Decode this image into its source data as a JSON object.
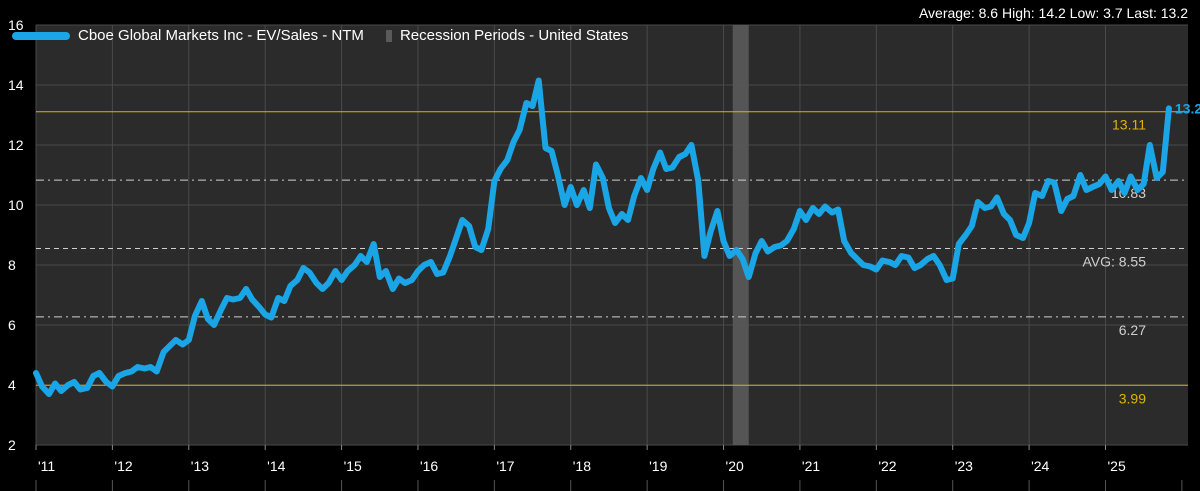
{
  "stats_text": "Average: 8.6 High: 14.2 Low: 3.7 Last: 13.2",
  "legend": {
    "series_label": "Cboe Global Markets Inc - EV/Sales - NTM",
    "recession_label": "Recession Periods - United States"
  },
  "colors": {
    "background": "#000000",
    "plot_background": "#2b2b2b",
    "series": "#1aa6e6",
    "recession": "#5a5a5a",
    "band": "#e0b400",
    "ref_line": "#cfcfcf",
    "grid": "#4a4a4a"
  },
  "chart_data": {
    "type": "line",
    "ylim": [
      2,
      16
    ],
    "yticks": [
      "2",
      "4",
      "6",
      "8",
      "10",
      "12",
      "14",
      "16"
    ],
    "xlim": [
      2011.0,
      2026.08
    ],
    "xtick_labels": [
      "'11",
      "'12",
      "'13",
      "'14",
      "'15",
      "'16",
      "'17",
      "'18",
      "'19",
      "'20",
      "'21",
      "'22",
      "'23",
      "'24",
      "'25"
    ],
    "grid": true,
    "legend_position": "top-left",
    "reference_lines": [
      {
        "value": 13.11,
        "label": "13.11",
        "style": "solid",
        "color": "#e0b400"
      },
      {
        "value": 10.83,
        "label": "10.83",
        "style": "dashdot",
        "color": "#cfcfcf"
      },
      {
        "value": 8.55,
        "label": "AVG:  8.55",
        "style": "dashed",
        "color": "#cfcfcf"
      },
      {
        "value": 6.27,
        "label": "6.27",
        "style": "dashdot",
        "color": "#cfcfcf"
      },
      {
        "value": 3.99,
        "label": "3.99",
        "style": "solid",
        "color": "#e0b400"
      }
    ],
    "recession_periods": [
      [
        2020.12,
        2020.33
      ]
    ],
    "last_value_label": "13.22",
    "series": [
      {
        "name": "Cboe Global Markets Inc - EV/Sales - NTM",
        "points": [
          [
            2011.0,
            4.4
          ],
          [
            2011.08,
            3.95
          ],
          [
            2011.17,
            3.7
          ],
          [
            2011.25,
            4.05
          ],
          [
            2011.33,
            3.8
          ],
          [
            2011.42,
            4.0
          ],
          [
            2011.5,
            4.1
          ],
          [
            2011.58,
            3.85
          ],
          [
            2011.67,
            3.9
          ],
          [
            2011.75,
            4.3
          ],
          [
            2011.83,
            4.4
          ],
          [
            2011.92,
            4.1
          ],
          [
            2012.0,
            3.95
          ],
          [
            2012.08,
            4.3
          ],
          [
            2012.17,
            4.4
          ],
          [
            2012.25,
            4.45
          ],
          [
            2012.33,
            4.6
          ],
          [
            2012.42,
            4.55
          ],
          [
            2012.5,
            4.6
          ],
          [
            2012.58,
            4.45
          ],
          [
            2012.67,
            5.1
          ],
          [
            2012.75,
            5.3
          ],
          [
            2012.83,
            5.5
          ],
          [
            2012.92,
            5.35
          ],
          [
            2013.0,
            5.5
          ],
          [
            2013.08,
            6.3
          ],
          [
            2013.17,
            6.8
          ],
          [
            2013.25,
            6.2
          ],
          [
            2013.33,
            6.0
          ],
          [
            2013.42,
            6.5
          ],
          [
            2013.5,
            6.9
          ],
          [
            2013.58,
            6.85
          ],
          [
            2013.67,
            6.9
          ],
          [
            2013.75,
            7.2
          ],
          [
            2013.83,
            6.85
          ],
          [
            2013.92,
            6.6
          ],
          [
            2014.0,
            6.35
          ],
          [
            2014.08,
            6.25
          ],
          [
            2014.17,
            6.9
          ],
          [
            2014.25,
            6.8
          ],
          [
            2014.33,
            7.3
          ],
          [
            2014.42,
            7.5
          ],
          [
            2014.5,
            7.9
          ],
          [
            2014.58,
            7.75
          ],
          [
            2014.67,
            7.4
          ],
          [
            2014.75,
            7.2
          ],
          [
            2014.83,
            7.4
          ],
          [
            2014.92,
            7.8
          ],
          [
            2015.0,
            7.5
          ],
          [
            2015.08,
            7.8
          ],
          [
            2015.17,
            8.0
          ],
          [
            2015.25,
            8.3
          ],
          [
            2015.33,
            8.1
          ],
          [
            2015.42,
            8.7
          ],
          [
            2015.5,
            7.6
          ],
          [
            2015.58,
            7.8
          ],
          [
            2015.67,
            7.2
          ],
          [
            2015.75,
            7.55
          ],
          [
            2015.83,
            7.4
          ],
          [
            2015.92,
            7.5
          ],
          [
            2016.0,
            7.8
          ],
          [
            2016.08,
            8.0
          ],
          [
            2016.17,
            8.1
          ],
          [
            2016.25,
            7.7
          ],
          [
            2016.33,
            7.75
          ],
          [
            2016.42,
            8.3
          ],
          [
            2016.5,
            8.9
          ],
          [
            2016.58,
            9.5
          ],
          [
            2016.67,
            9.3
          ],
          [
            2016.75,
            8.6
          ],
          [
            2016.83,
            8.5
          ],
          [
            2016.92,
            9.2
          ],
          [
            2017.0,
            10.8
          ],
          [
            2017.08,
            11.2
          ],
          [
            2017.17,
            11.5
          ],
          [
            2017.25,
            12.1
          ],
          [
            2017.33,
            12.5
          ],
          [
            2017.42,
            13.4
          ],
          [
            2017.5,
            13.3
          ],
          [
            2017.58,
            14.15
          ],
          [
            2017.67,
            11.9
          ],
          [
            2017.75,
            11.8
          ],
          [
            2017.83,
            11.0
          ],
          [
            2017.92,
            10.0
          ],
          [
            2018.0,
            10.6
          ],
          [
            2018.08,
            10.0
          ],
          [
            2018.17,
            10.5
          ],
          [
            2018.25,
            9.9
          ],
          [
            2018.33,
            11.35
          ],
          [
            2018.42,
            10.9
          ],
          [
            2018.5,
            9.9
          ],
          [
            2018.58,
            9.4
          ],
          [
            2018.67,
            9.7
          ],
          [
            2018.75,
            9.5
          ],
          [
            2018.83,
            10.3
          ],
          [
            2018.92,
            10.9
          ],
          [
            2019.0,
            10.5
          ],
          [
            2019.08,
            11.2
          ],
          [
            2019.17,
            11.75
          ],
          [
            2019.25,
            11.2
          ],
          [
            2019.33,
            11.25
          ],
          [
            2019.42,
            11.6
          ],
          [
            2019.5,
            11.7
          ],
          [
            2019.58,
            12.0
          ],
          [
            2019.67,
            10.8
          ],
          [
            2019.75,
            8.3
          ],
          [
            2019.83,
            9.1
          ],
          [
            2019.92,
            9.8
          ],
          [
            2020.0,
            8.8
          ],
          [
            2020.08,
            8.3
          ],
          [
            2020.17,
            8.5
          ],
          [
            2020.25,
            8.2
          ],
          [
            2020.33,
            7.6
          ],
          [
            2020.42,
            8.4
          ],
          [
            2020.5,
            8.8
          ],
          [
            2020.58,
            8.45
          ],
          [
            2020.67,
            8.6
          ],
          [
            2020.75,
            8.65
          ],
          [
            2020.83,
            8.8
          ],
          [
            2020.92,
            9.2
          ],
          [
            2021.0,
            9.8
          ],
          [
            2021.08,
            9.5
          ],
          [
            2021.17,
            9.9
          ],
          [
            2021.25,
            9.7
          ],
          [
            2021.33,
            9.95
          ],
          [
            2021.42,
            9.75
          ],
          [
            2021.5,
            9.85
          ],
          [
            2021.58,
            8.8
          ],
          [
            2021.67,
            8.4
          ],
          [
            2021.75,
            8.2
          ],
          [
            2021.83,
            8.0
          ],
          [
            2021.92,
            7.95
          ],
          [
            2022.0,
            7.85
          ],
          [
            2022.08,
            8.15
          ],
          [
            2022.17,
            8.1
          ],
          [
            2022.25,
            8.0
          ],
          [
            2022.33,
            8.3
          ],
          [
            2022.42,
            8.25
          ],
          [
            2022.5,
            7.9
          ],
          [
            2022.58,
            8.0
          ],
          [
            2022.67,
            8.2
          ],
          [
            2022.75,
            8.3
          ],
          [
            2022.83,
            8.0
          ],
          [
            2022.92,
            7.5
          ],
          [
            2023.0,
            7.55
          ],
          [
            2023.08,
            8.7
          ],
          [
            2023.17,
            9.0
          ],
          [
            2023.25,
            9.3
          ],
          [
            2023.33,
            10.1
          ],
          [
            2023.42,
            9.9
          ],
          [
            2023.5,
            9.95
          ],
          [
            2023.58,
            10.25
          ],
          [
            2023.67,
            9.7
          ],
          [
            2023.75,
            9.5
          ],
          [
            2023.83,
            9.0
          ],
          [
            2023.92,
            8.9
          ],
          [
            2024.0,
            9.4
          ],
          [
            2024.08,
            10.4
          ],
          [
            2024.17,
            10.3
          ],
          [
            2024.25,
            10.8
          ],
          [
            2024.33,
            10.75
          ],
          [
            2024.42,
            9.8
          ],
          [
            2024.5,
            10.2
          ],
          [
            2024.58,
            10.3
          ],
          [
            2024.67,
            11.0
          ],
          [
            2024.75,
            10.5
          ],
          [
            2024.83,
            10.6
          ],
          [
            2024.92,
            10.7
          ],
          [
            2025.0,
            10.95
          ],
          [
            2025.08,
            10.5
          ],
          [
            2025.17,
            10.8
          ],
          [
            2025.25,
            10.4
          ],
          [
            2025.33,
            10.95
          ],
          [
            2025.42,
            10.5
          ],
          [
            2025.5,
            10.7
          ],
          [
            2025.58,
            12.0
          ],
          [
            2025.67,
            10.9
          ],
          [
            2025.75,
            11.1
          ],
          [
            2025.83,
            13.22
          ]
        ]
      }
    ]
  }
}
